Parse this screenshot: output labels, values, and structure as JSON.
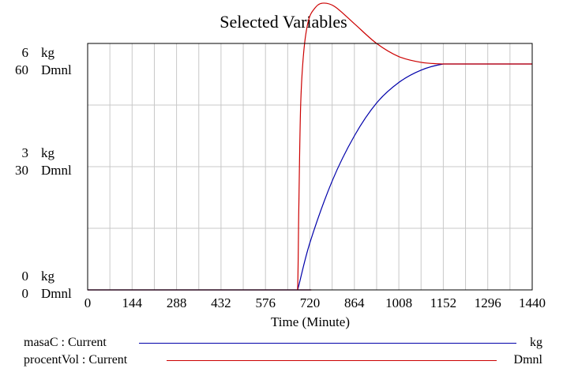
{
  "chart_data": {
    "type": "line",
    "title": "Selected Variables",
    "xlabel": "Time (Minute)",
    "xlim": [
      0,
      1440
    ],
    "x_ticks": [
      "0",
      "144",
      "288",
      "432",
      "576",
      "720",
      "864",
      "1008",
      "1152",
      "1296",
      "1440"
    ],
    "grid": true,
    "y_axes": [
      {
        "unit": "kg",
        "ylim": [
          0,
          6
        ],
        "tick_labels": [
          "0",
          "3",
          "6"
        ]
      },
      {
        "unit": "Dmnl",
        "ylim": [
          0,
          60
        ],
        "tick_labels": [
          "0",
          "30",
          "60"
        ]
      }
    ],
    "series": [
      {
        "name": "masaC : Current",
        "unit": "kg",
        "color": "#0000aa",
        "x": [
          0,
          672,
          680,
          720,
          792,
          864,
          936,
          1008,
          1080,
          1152,
          1200,
          1296,
          1440
        ],
        "y": [
          0,
          0,
          0,
          1.15,
          2.65,
          3.75,
          4.55,
          5.05,
          5.35,
          5.5,
          5.5,
          5.5,
          5.5
        ]
      },
      {
        "name": "procentVol : Current",
        "unit": "Dmnl",
        "color": "#cc0000",
        "x": [
          0,
          672,
          680,
          684,
          690,
          700,
          715,
          735,
          760,
          800,
          864,
          936,
          1008,
          1080,
          1152,
          1200,
          1296,
          1440
        ],
        "y": [
          0,
          0,
          0,
          20,
          45,
          58,
          65.5,
          68.5,
          69.8,
          69,
          64.8,
          60,
          56.8,
          55.4,
          55,
          55,
          55,
          55
        ]
      }
    ]
  },
  "legend": [
    {
      "label": "masaC : Current",
      "unit": "kg",
      "color": "#0000aa"
    },
    {
      "label": "procentVol : Current",
      "unit": "Dmnl",
      "color": "#cc0000"
    }
  ]
}
